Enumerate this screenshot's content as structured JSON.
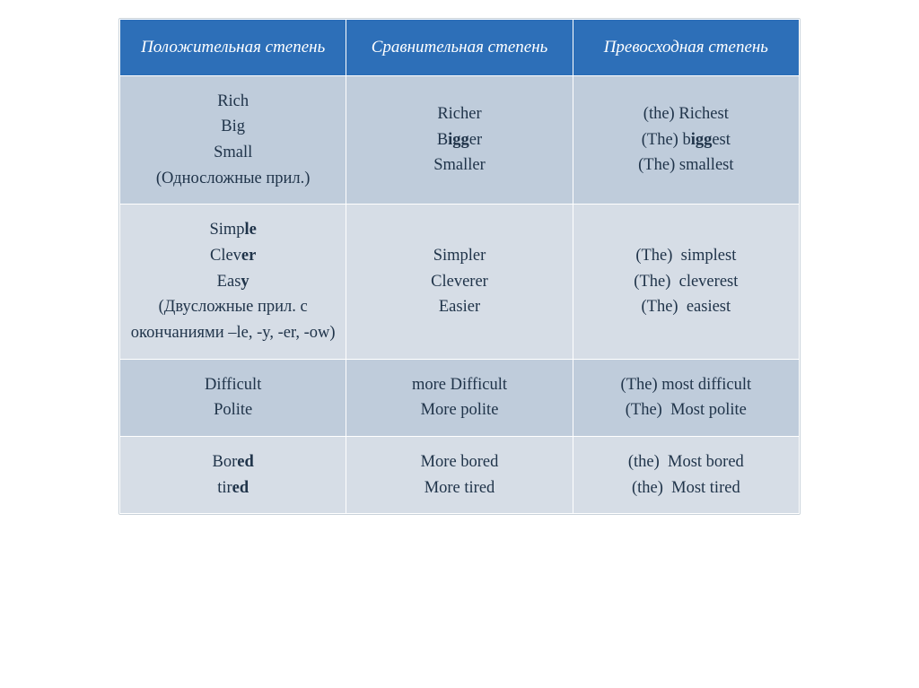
{
  "table": {
    "header_bg": "#2d6fb8",
    "header_text_color": "#ffffff",
    "body_text_color": "#20344a",
    "row_colors": [
      "#bfccdb",
      "#d6dde6",
      "#bfccdb",
      "#d6dde6"
    ],
    "columns": [
      "Положительная степень",
      "Сравнительная степень",
      "Превосходная степень"
    ],
    "rows": [
      {
        "positive": "Rich\nBig\nSmall\n(Односложные прил.)",
        "positive_html": "R<span>ich</span><br>B<span>ig</span><br>S<span>mall</span><br>(Односложные прил.)",
        "comparative": "Richer\nBigger\nSmaller",
        "comparative_html": "R<span>ich</span>er<br>B<b>igg</b>er<br>S<span>mall</span>er",
        "superlative": "(the) Richest\n(The) biggest\n(The) smallest",
        "superlative_html": "(the) R<span>ich</span>est<br>(The) b<b>igg</b>est<br>(The) s<span>mall</span>est"
      },
      {
        "positive": "Simple\nClever\nEasy\n(Двусложные прил. с окончаниями –le, -y, -er, -ow)",
        "positive_html": "S<span>imp</span><b>le</b><br>C<span>lev</span><b>er</b><br>E<span>as</span><b>y</b><br>(Двусложные прил. с окончаниями –le, -y, -er, -ow)",
        "comparative": "Simpler\nCleverer\nEasier",
        "comparative_html": "S<span>impl</span>er<br>C<span>lever</span>er<br>E<span>asi</span>er",
        "superlative": "(The)  simplest\n(The)  cleverest\n(The)  easiest",
        "superlative_html": "(The)&nbsp;&nbsp;s<span>impl</span>est<br>(The)&nbsp;&nbsp;c<span>lever</span>est<br>(The)&nbsp;&nbsp;e<span>asi</span>est"
      },
      {
        "positive": "Difficult\nPolite",
        "positive_html": "Difficult<br>Polite",
        "comparative": "more Difficult\nMore polite",
        "comparative_html": "more Difficult<br>More polite",
        "superlative": "(The) most difficult\n(The)  Most polite",
        "superlative_html": "(The) most difficult<br>(The)&nbsp;&nbsp;Most polite"
      },
      {
        "positive": "Bored\ntired",
        "positive_html": "<span>Bor</span><b>ed</b><br><span>tir</span><b>ed</b>",
        "comparative": "More bored\nMore tired",
        "comparative_html": "More bored<br>More tired",
        "superlative": "(the)  Most bored\n(the)  Most tired",
        "superlative_html": "(the)&nbsp;&nbsp;Most bored<br>(the)&nbsp;&nbsp;Most tired"
      }
    ]
  }
}
